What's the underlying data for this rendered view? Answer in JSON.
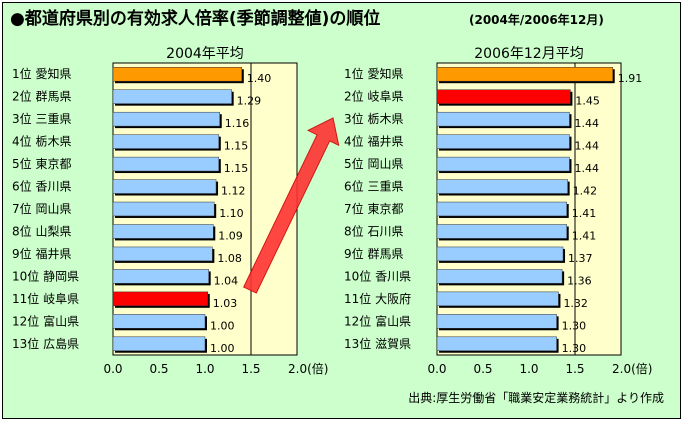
{
  "title": "●都道府県別の有効求人倍率(季節調整値)の順位",
  "subtitle": "(2004年/2006年12月)",
  "source": "出典:厚生労働省「職業安定業務統計」より作成",
  "colors": {
    "background": "#ccffcc",
    "plot_area": "#ffffcc",
    "bar_default": "#99ccff",
    "bar_top": "#ff9900",
    "bar_highlight": "#ff0000",
    "arrow": "#ff3333"
  },
  "chart_data": [
    {
      "type": "bar",
      "orientation": "horizontal",
      "title": "2004年平均",
      "categories": [
        "1位 愛知県",
        "2位 群馬県",
        "3位 三重県",
        "4位 栃木県",
        "5位 東京都",
        "6位 香川県",
        "7位 岡山県",
        "8位 山梨県",
        "9位 福井県",
        "10位 静岡県",
        "11位 岐阜県",
        "12位 富山県",
        "13位 広島県"
      ],
      "values": [
        1.4,
        1.29,
        1.16,
        1.15,
        1.15,
        1.12,
        1.1,
        1.09,
        1.08,
        1.04,
        1.03,
        1.0,
        1.0
      ],
      "value_labels": [
        "1.40",
        "1.29",
        "1.16",
        "1.15",
        "1.15",
        "1.12",
        "1.10",
        "1.09",
        "1.08",
        "1.04",
        "1.03",
        "1.00",
        "1.00"
      ],
      "bar_colors": [
        "#ff9900",
        "#99ccff",
        "#99ccff",
        "#99ccff",
        "#99ccff",
        "#99ccff",
        "#99ccff",
        "#99ccff",
        "#99ccff",
        "#99ccff",
        "#ff0000",
        "#99ccff",
        "#99ccff"
      ],
      "xlim": [
        0,
        2.0
      ],
      "xticks": [
        "0.0",
        "0.5",
        "1.0",
        "1.5",
        "2.0(倍)"
      ],
      "reference_line": 1.5,
      "grid": false
    },
    {
      "type": "bar",
      "orientation": "horizontal",
      "title": "2006年12月平均",
      "categories": [
        "1位 愛知県",
        "2位 岐阜県",
        "3位 栃木県",
        "4位 福井県",
        "5位 岡山県",
        "6位 三重県",
        "7位 東京都",
        "8位 石川県",
        "9位 群馬県",
        "10位 香川県",
        "11位 大阪府",
        "12位 富山県",
        "13位 滋賀県"
      ],
      "values": [
        1.91,
        1.45,
        1.44,
        1.44,
        1.44,
        1.42,
        1.41,
        1.41,
        1.37,
        1.36,
        1.32,
        1.3,
        1.3
      ],
      "value_labels": [
        "1.91",
        "1.45",
        "1.44",
        "1.44",
        "1.44",
        "1.42",
        "1.41",
        "1.41",
        "1.37",
        "1.36",
        "1.32",
        "1.30",
        "1.30"
      ],
      "bar_colors": [
        "#ff9900",
        "#ff0000",
        "#99ccff",
        "#99ccff",
        "#99ccff",
        "#99ccff",
        "#99ccff",
        "#99ccff",
        "#99ccff",
        "#99ccff",
        "#99ccff",
        "#99ccff",
        "#99ccff"
      ],
      "xlim": [
        0,
        2.0
      ],
      "xticks": [
        "0.0",
        "0.5",
        "1.0",
        "1.5",
        "2.0(倍)"
      ],
      "reference_line": 1.5,
      "grid": false
    }
  ]
}
